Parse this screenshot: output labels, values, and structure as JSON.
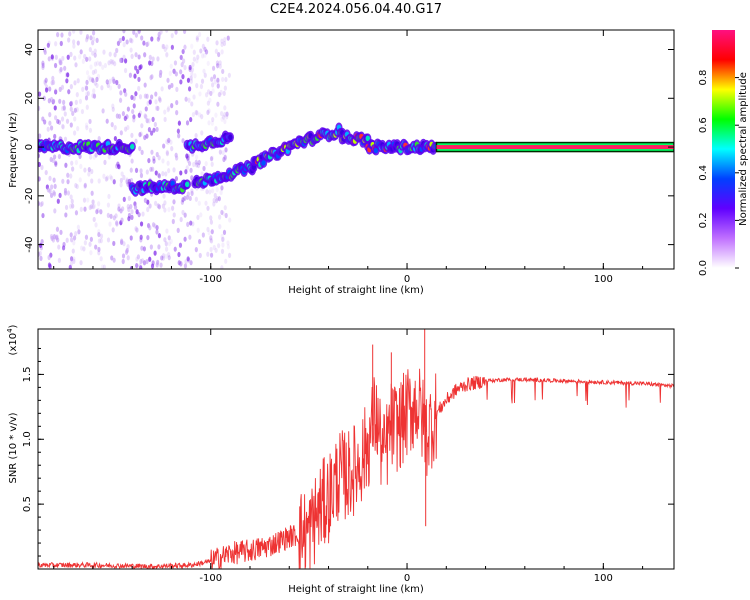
{
  "title": "C2E4.2024.056.04.40.G17",
  "chart_data": [
    {
      "type": "heatmap",
      "xlabel": "Height of straight line (km)",
      "ylabel": "Frequency (Hz)",
      "xlim": [
        -188,
        136
      ],
      "ylim": [
        -50,
        48
      ],
      "xticks": [
        -100,
        0,
        100
      ],
      "yticks": [
        -40,
        -20,
        0,
        20,
        40
      ],
      "colorbar": {
        "label": "Normalized spectral amplitude",
        "range": [
          0,
          1
        ],
        "ticks": [
          0.0,
          0.2,
          0.4,
          0.6,
          0.8
        ],
        "colors": [
          "#ffffff",
          "#c070ff",
          "#6000ff",
          "#0040ff",
          "#00ffff",
          "#00ff00",
          "#ffff00",
          "#ff0000",
          "#ff1080"
        ]
      },
      "tracks": [
        {
          "x": [
            -188,
            -140
          ],
          "y": [
            0,
            0
          ]
        },
        {
          "x": [
            -140,
            -112
          ],
          "y": [
            -17,
            -16
          ]
        },
        {
          "x": [
            -112,
            -90
          ],
          "y": [
            0,
            4
          ]
        },
        {
          "x": [
            -108,
            -78
          ],
          "y": [
            -15,
            -8
          ]
        },
        {
          "x": [
            -78,
            -55
          ],
          "y": [
            -7,
            2
          ]
        },
        {
          "x": [
            -55,
            -33
          ],
          "y": [
            2,
            7
          ]
        },
        {
          "x": [
            -33,
            -20
          ],
          "y": [
            4,
            3
          ]
        },
        {
          "x": [
            -20,
            15
          ],
          "y": [
            0,
            0
          ]
        },
        {
          "x": [
            15,
            136
          ],
          "y": [
            0,
            0
          ]
        }
      ]
    },
    {
      "type": "line",
      "xlabel": "Height of straight line (km)",
      "ylabel": "SNR (10 * v/v)",
      "exponent_label": "(x10",
      "exponent_power": "4",
      "exponent_close": ")",
      "xlim": [
        -188,
        136
      ],
      "ylim": [
        0,
        1.85
      ],
      "xticks": [
        -100,
        0,
        100
      ],
      "yticks": [
        0.5,
        1.0,
        1.5
      ],
      "ytick_labels": [
        "0.5",
        "1.0",
        "1.5"
      ],
      "color": "#ee3333",
      "series": [
        {
          "x": [
            -188,
            -160,
            -130,
            -110,
            -100,
            -90,
            -80,
            -70,
            -60,
            -50,
            -45,
            -40,
            -35,
            -30,
            -25,
            -20,
            -16,
            -12,
            -8,
            -4,
            0,
            5,
            10,
            15,
            20,
            25,
            30,
            40,
            50,
            60,
            80,
            100,
            120,
            136
          ],
          "y": [
            0.03,
            0.03,
            0.02,
            0.03,
            0.06,
            0.12,
            0.14,
            0.18,
            0.25,
            0.28,
            0.45,
            0.55,
            0.72,
            0.72,
            0.8,
            0.95,
            1.2,
            0.85,
            1.1,
            1.1,
            1.2,
            1.28,
            1.05,
            1.2,
            1.3,
            1.38,
            1.42,
            1.45,
            1.46,
            1.46,
            1.45,
            1.44,
            1.43,
            1.41
          ],
          "peaks": [
            {
              "x": -17.5,
              "y": 1.73
            },
            {
              "x": -8,
              "y": 1.67
            },
            {
              "x": 9,
              "y": 1.85
            },
            {
              "x": 9.5,
              "y": 0.33
            }
          ]
        }
      ]
    }
  ]
}
